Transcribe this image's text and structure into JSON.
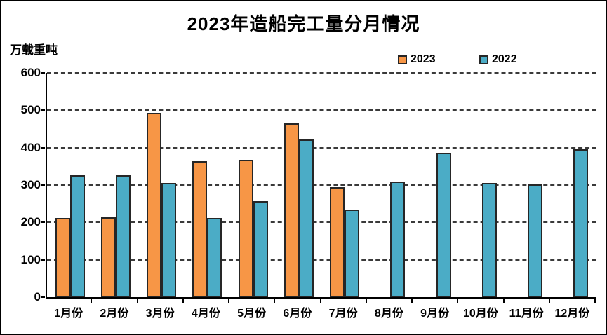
{
  "title": "2023年造船完工量分月情况",
  "y_axis_unit": "万载重吨",
  "legend": [
    {
      "label": "2023",
      "color": "#F79646"
    },
    {
      "label": "2022",
      "color": "#4BACC6"
    }
  ],
  "chart_data": {
    "type": "bar",
    "title": "2023年造船完工量分月情况",
    "xlabel": "",
    "ylabel": "万载重吨",
    "categories": [
      "1月份",
      "2月份",
      "3月份",
      "4月份",
      "5月份",
      "6月份",
      "7月份",
      "8月份",
      "9月份",
      "10月份",
      "11月份",
      "12月份"
    ],
    "series": [
      {
        "name": "2023",
        "color": "#F79646",
        "values": [
          211,
          213,
          494,
          363,
          367,
          465,
          294,
          null,
          null,
          null,
          null,
          null
        ]
      },
      {
        "name": "2022",
        "color": "#4BACC6",
        "values": [
          326,
          327,
          306,
          211,
          257,
          421,
          234,
          309,
          386,
          306,
          302,
          395
        ]
      }
    ],
    "ylim": [
      0,
      600
    ],
    "ytick_interval": 100,
    "y_tick_labels": [
      "600",
      "500",
      "400",
      "300",
      "200",
      "100",
      "0"
    ],
    "grid": "horizontal-dashed",
    "legend_position": "top-right",
    "bar_border_color": "#262626",
    "background": "#FFFFFF"
  }
}
